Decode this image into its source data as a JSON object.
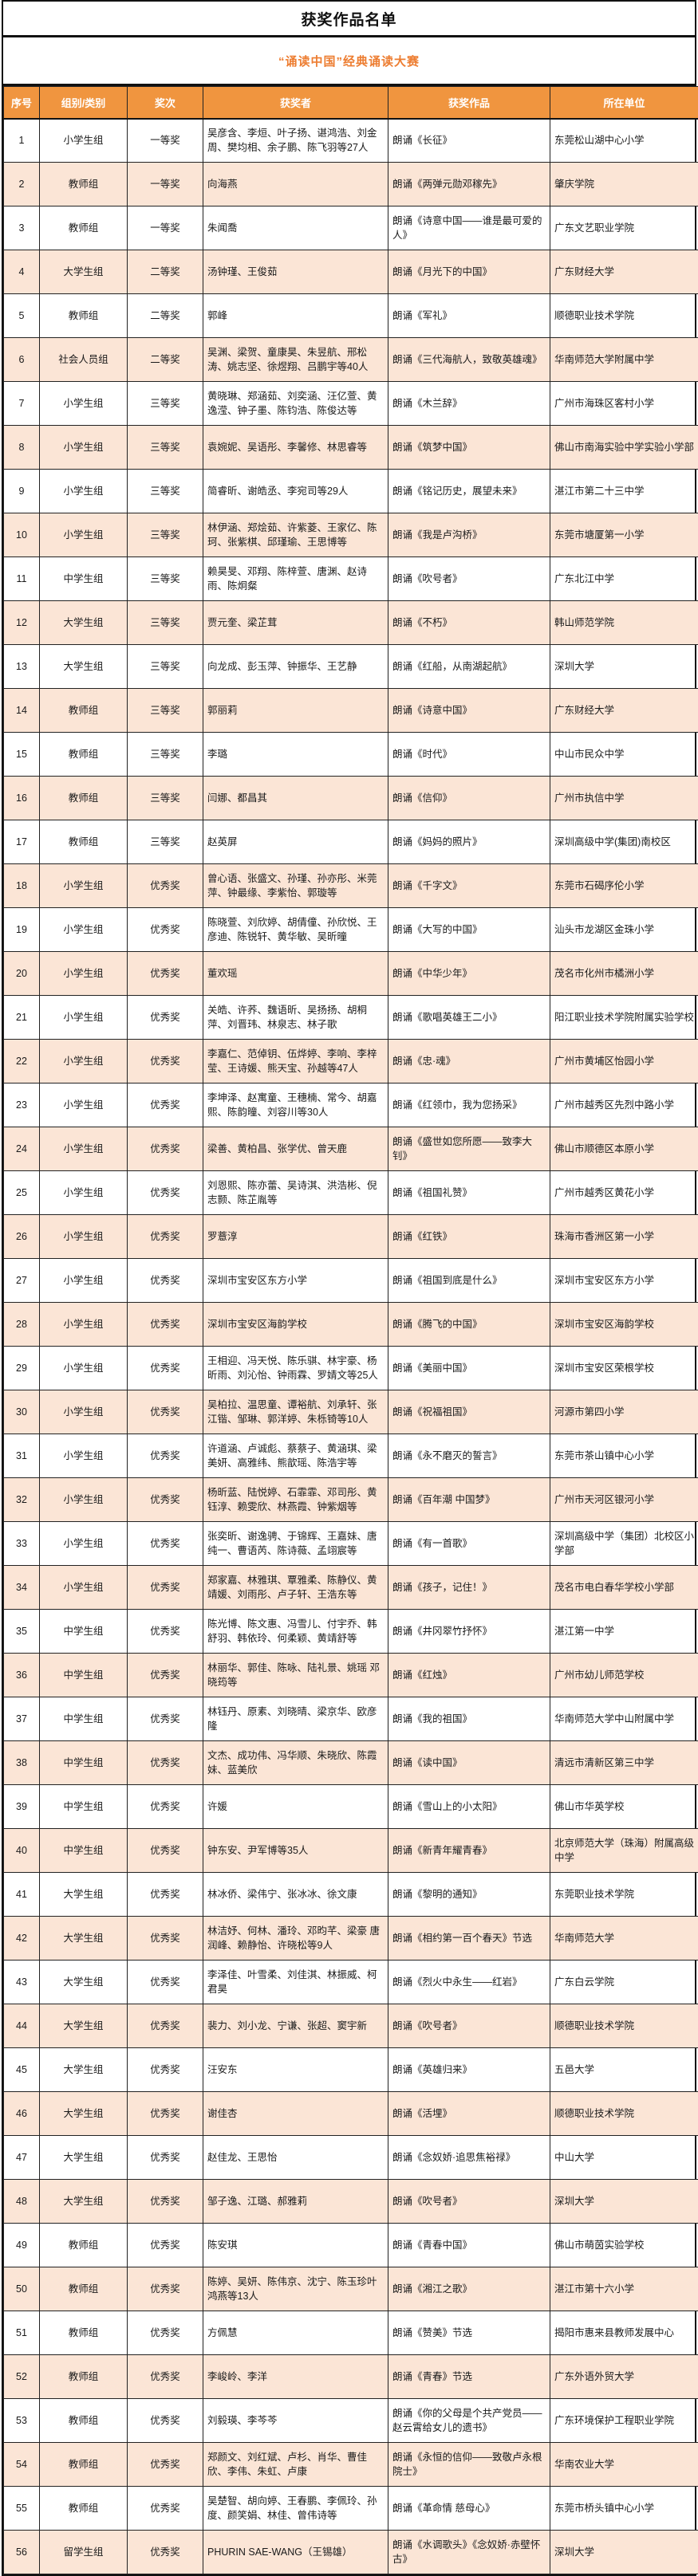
{
  "page_title": "获奖作品名单",
  "subtitle": "“诵读中国”经典诵读大赛",
  "colors": {
    "header_bg": "#F0953F",
    "header_text": "#FFFFFF",
    "alt_row_bg": "#FBE5D6",
    "subtitle_text": "#ED7D31",
    "border": "#111111"
  },
  "table": {
    "columns": [
      "序号",
      "组别/类别",
      "奖次",
      "获奖者",
      "获奖作品",
      "所在单位"
    ],
    "rows": [
      {
        "no": "1",
        "group": "小学生组",
        "award": "一等奖",
        "winners": "吴彦含、李烜、叶子扬、谌鸿浩、刘金周、樊均相、余子鹏、陈飞羽等27人",
        "work": "朗诵《长征》",
        "org": "东莞松山湖中心小学"
      },
      {
        "no": "2",
        "group": "教师组",
        "award": "一等奖",
        "winners": "向海燕",
        "work": "朗诵《两弹元勋邓稼先》",
        "org": "肇庆学院"
      },
      {
        "no": "3",
        "group": "教师组",
        "award": "一等奖",
        "winners": "朱闻喬",
        "work": "朗诵《诗意中国——谁是最可爱的人》",
        "org": "广东文艺职业学院"
      },
      {
        "no": "4",
        "group": "大学生组",
        "award": "二等奖",
        "winners": "汤钟瑾、王俊茹",
        "work": "朗诵《月光下的中国》",
        "org": "广东财经大学"
      },
      {
        "no": "5",
        "group": "教师组",
        "award": "二等奖",
        "winners": "郭峰",
        "work": "朗诵《军礼》",
        "org": "顺德职业技术学院"
      },
      {
        "no": "6",
        "group": "社会人员组",
        "award": "二等奖",
        "winners": "吴渊、梁贺、童康昊、朱昱航、邢松涛、姚志坚、徐煜翔、吕鹏宇等40人",
        "work": "朗诵《三代海航人，致敬英雄魂》",
        "org": "华南师范大学附属中学"
      },
      {
        "no": "7",
        "group": "小学生组",
        "award": "三等奖",
        "winners": "黄晓琳、郑涵茹、刘奕涵、汪亿萱、黄逸滢、钟子墨、陈钧浩、陈俊达等",
        "work": "朗诵《木兰辞》",
        "org": "广州市海珠区客村小学"
      },
      {
        "no": "8",
        "group": "小学生组",
        "award": "三等奖",
        "winners": "袁婉妮、吴语彤、李馨修、林思睿等",
        "work": "朗诵《筑梦中国》",
        "org": "佛山市南海实验中学实验小学部"
      },
      {
        "no": "9",
        "group": "小学生组",
        "award": "三等奖",
        "winners": "简睿昕、谢皓丞、李宛司等29人",
        "work": "朗诵《铭记历史，展望未来》",
        "org": "湛江市第二十三中学"
      },
      {
        "no": "10",
        "group": "小学生组",
        "award": "三等奖",
        "winners": "林伊涵、郑烩茹、许紫菱、王家亿、陈珂、张紫棋、邱瑾瑜、王思博等",
        "work": "朗诵《我是卢沟桥》",
        "org": "东莞市塘厦第一小学"
      },
      {
        "no": "11",
        "group": "中学生组",
        "award": "三等奖",
        "winners": "赖昊旻、邓翔、陈梓萱、唐渊、赵诗雨、陈炯粲",
        "work": "朗诵《吹号者》",
        "org": "广东北江中学"
      },
      {
        "no": "12",
        "group": "大学生组",
        "award": "三等奖",
        "winners": "贾元奎、梁芷茸",
        "work": "朗诵《不朽》",
        "org": "韩山师范学院"
      },
      {
        "no": "13",
        "group": "大学生组",
        "award": "三等奖",
        "winners": "向龙成、彭玉萍、钟振华、王艺静",
        "work": "朗诵《红船，从南湖起航》",
        "org": "深圳大学"
      },
      {
        "no": "14",
        "group": "教师组",
        "award": "三等奖",
        "winners": "郭丽莉",
        "work": "朗诵《诗意中国》",
        "org": "广东财经大学"
      },
      {
        "no": "15",
        "group": "教师组",
        "award": "三等奖",
        "winners": "李璐",
        "work": "朗诵《时代》",
        "org": "中山市民众中学"
      },
      {
        "no": "16",
        "group": "教师组",
        "award": "三等奖",
        "winners": "闫娜、都昌其",
        "work": "朗诵《信仰》",
        "org": "广州市执信中学"
      },
      {
        "no": "17",
        "group": "教师组",
        "award": "三等奖",
        "winners": "赵英屏",
        "work": "朗诵《妈妈的照片》",
        "org": "深圳高级中学(集团)南校区"
      },
      {
        "no": "18",
        "group": "小学生组",
        "award": "优秀奖",
        "winners": "曾心语、张盛文、孙瑾、孙亦彤、米莞萍、钟最缘、李紫怡、郭璇等",
        "work": "朗诵《千字文》",
        "org": "东莞市石碣序伦小学"
      },
      {
        "no": "19",
        "group": "小学生组",
        "award": "优秀奖",
        "winners": "陈晓萱、刘欣婷、胡倩僮、孙欣悦、王彦迪、陈锐轩、黄华敏、吴昕曈",
        "work": "朗诵《大写的中国》",
        "org": "汕头市龙湖区金珠小学"
      },
      {
        "no": "20",
        "group": "小学生组",
        "award": "优秀奖",
        "winners": "董欢瑶",
        "work": "朗诵《中华少年》",
        "org": "茂名市化州市橘洲小学"
      },
      {
        "no": "21",
        "group": "小学生组",
        "award": "优秀奖",
        "winners": "关皓、许荞、魏语昕、吴扬扬、胡桐萍、刘晋玮、林泉志、林子歌",
        "work": "朗诵《歌唱英雄王二小》",
        "org": "阳江职业技术学院附属实验学校"
      },
      {
        "no": "22",
        "group": "小学生组",
        "award": "优秀奖",
        "winners": "李嘉仁、范倬钥、伍烨婷、李响、李梓莹、王诗媛、熊天宝、孙越等47人",
        "work": "朗诵《忠·魂》",
        "org": "广州市黄埔区怡园小学"
      },
      {
        "no": "23",
        "group": "小学生组",
        "award": "优秀奖",
        "winners": "李坤泽、赵寓童、王穗楠、常今、胡嘉熙、陈韵曈、刘容川等30人",
        "work": "朗诵《红领巾，我为您扬采》",
        "org": "广州市越秀区先烈中路小学"
      },
      {
        "no": "24",
        "group": "小学生组",
        "award": "优秀奖",
        "winners": "梁善、黄柏昌、张学优、曾天鹿",
        "work": "朗诵《盛世如您所愿——致李大钊》",
        "org": "佛山市顺德区本原小学"
      },
      {
        "no": "25",
        "group": "小学生组",
        "award": "优秀奖",
        "winners": "刘恩熙、陈亦蕾、吴诗淇、洪浩彬、倪志颢、陈芷胤等",
        "work": "朗诵《祖国礼赞》",
        "org": "广州市越秀区黄花小学"
      },
      {
        "no": "26",
        "group": "小学生组",
        "award": "优秀奖",
        "winners": "罗薏淳",
        "work": "朗诵《红铁》",
        "org": "珠海市香洲区第一小学"
      },
      {
        "no": "27",
        "group": "小学生组",
        "award": "优秀奖",
        "winners": "深圳市宝安区东方小学",
        "work": "朗诵《祖国到底是什么》",
        "org": "深圳市宝安区东方小学"
      },
      {
        "no": "28",
        "group": "小学生组",
        "award": "优秀奖",
        "winners": "深圳市宝安区海韵学校",
        "work": "朗诵《腾飞的中国》",
        "org": "深圳市宝安区海韵学校"
      },
      {
        "no": "29",
        "group": "小学生组",
        "award": "优秀奖",
        "winners": "王相迎、冯天悦、陈乐骐、林宇豪、杨昕雨、刘沁怡、钟雨霖、罗婧文等25人",
        "work": "朗诵《美丽中国》",
        "org": "深圳市宝安区荣根学校"
      },
      {
        "no": "30",
        "group": "小学生组",
        "award": "优秀奖",
        "winners": "吴柏拉、温思童、谭裕航、刘承轩、张江锴、邹琳、郭洋婷、朱栎锜等10人",
        "work": "朗诵《祝福祖国》",
        "org": "河源市第四小学"
      },
      {
        "no": "31",
        "group": "小学生组",
        "award": "优秀奖",
        "winners": "许道涵、卢诚彪、蔡蔡子、黄涵琪、梁美妍、高雅纬、熊歆瑶、陈浩宇等",
        "work": "朗诵《永不磨灭的誓言》",
        "org": "东莞市茶山镇中心小学"
      },
      {
        "no": "32",
        "group": "小学生组",
        "award": "优秀奖",
        "winners": "杨昕蓝、陆悦婷、石霏霏、邓司彤、黄钰淳、赖雯欣、林燕霞、钟紫烟等",
        "work": "朗诵《百年潮 中国梦》",
        "org": "广州市天河区银河小学"
      },
      {
        "no": "33",
        "group": "小学生组",
        "award": "优秀奖",
        "winners": "张奕昕、谢逸骋、于锦辉、王嘉妹、唐纯一、曹语芮、陈诗薇、孟翊宸等",
        "work": "朗诵《有一首歌》",
        "org": "深圳高级中学（集团）北校区小学部"
      },
      {
        "no": "34",
        "group": "小学生组",
        "award": "优秀奖",
        "winners": "郑家嘉、林雅琪、覃雅柔、陈静仪、黄靖媛、刘雨彤、卢子轩、王浩东等",
        "work": "朗诵《孩子，记住！》",
        "org": "茂名市电白春华学校小学部"
      },
      {
        "no": "35",
        "group": "中学生组",
        "award": "优秀奖",
        "winners": "陈光博、陈文惠、冯雪儿、付宇乔、韩舒羽、韩依玲、何柔颖、黄靖舒等",
        "work": "朗诵《井冈翠竹抒怀》",
        "org": "湛江第一中学"
      },
      {
        "no": "36",
        "group": "中学生组",
        "award": "优秀奖",
        "winners": "林丽华、郭佳、陈咏、陆礼景、姚瑶 邓晓筠等",
        "work": "朗诵《红烛》",
        "org": "广州市幼儿师范学校"
      },
      {
        "no": "37",
        "group": "中学生组",
        "award": "优秀奖",
        "winners": "林钰丹、原素、刘晓晴、梁京华、欧彦隆",
        "work": "朗诵《我的祖国》",
        "org": "华南师范大学中山附属中学"
      },
      {
        "no": "38",
        "group": "中学生组",
        "award": "优秀奖",
        "winners": "文杰、成功伟、冯华顺、朱晓欣、陈霞妹、蓝美欣",
        "work": "朗诵《读中国》",
        "org": "清远市清新区第三中学"
      },
      {
        "no": "39",
        "group": "中学生组",
        "award": "优秀奖",
        "winners": "许媛",
        "work": "朗诵《雪山上的小太阳》",
        "org": "佛山市华英学校"
      },
      {
        "no": "40",
        "group": "中学生组",
        "award": "优秀奖",
        "winners": "钟东安、尹军博等35人",
        "work": "朗诵《新青年耀青春》",
        "org": "北京师范大学（珠海）附属高级中学"
      },
      {
        "no": "41",
        "group": "大学生组",
        "award": "优秀奖",
        "winners": "林冰侨、梁伟宁、张冰冰、徐文康",
        "work": "朗诵《黎明的通知》",
        "org": "东莞职业技术学院"
      },
      {
        "no": "42",
        "group": "大学生组",
        "award": "优秀奖",
        "winners": "林洁妤、何林、潘玲、邓昀芊、梁豪 唐润峰、赖静怡、许晓松等9人",
        "work": "朗诵《相约第一百个春天》节选",
        "org": "华南师范大学"
      },
      {
        "no": "43",
        "group": "大学生组",
        "award": "优秀奖",
        "winners": "李泽佳、叶雪柔、刘佳淇、林振威、柯君昊",
        "work": "朗诵《烈火中永生——红岩》",
        "org": "广东白云学院"
      },
      {
        "no": "44",
        "group": "大学生组",
        "award": "优秀奖",
        "winners": "裴力、刘小龙、宁谦、张超、窦宇新",
        "work": "朗诵《吹号者》",
        "org": "顺德职业技术学院"
      },
      {
        "no": "45",
        "group": "大学生组",
        "award": "优秀奖",
        "winners": "汪安东",
        "work": "朗诵《英雄归来》",
        "org": "五邑大学"
      },
      {
        "no": "46",
        "group": "大学生组",
        "award": "优秀奖",
        "winners": "谢佳杏",
        "work": "朗诵《活埋》",
        "org": "顺德职业技术学院"
      },
      {
        "no": "47",
        "group": "大学生组",
        "award": "优秀奖",
        "winners": "赵佳龙、王思怡",
        "work": "朗诵《念奴娇·追思焦裕禄》",
        "org": "中山大学"
      },
      {
        "no": "48",
        "group": "大学生组",
        "award": "优秀奖",
        "winners": "邹子逸、江璐、郝雅莉",
        "work": "朗诵《吹号者》",
        "org": "深圳大学"
      },
      {
        "no": "49",
        "group": "教师组",
        "award": "优秀奖",
        "winners": "陈安琪",
        "work": "朗诵《青春中国》",
        "org": "佛山市萌茵实验学校"
      },
      {
        "no": "50",
        "group": "教师组",
        "award": "优秀奖",
        "winners": "陈婷、吴妍、陈伟京、沈宁、陈玉珍叶鸿燕等13人",
        "work": "朗诵《湘江之歌》",
        "org": "湛江市第十六小学"
      },
      {
        "no": "51",
        "group": "教师组",
        "award": "优秀奖",
        "winners": "方佩慧",
        "work": "朗诵《赞美》节选",
        "org": "揭阳市惠来县教师发展中心"
      },
      {
        "no": "52",
        "group": "教师组",
        "award": "优秀奖",
        "winners": "李峻岭、李洋",
        "work": "朗诵《青春》节选",
        "org": "广东外语外贸大学"
      },
      {
        "no": "53",
        "group": "教师组",
        "award": "优秀奖",
        "winners": "刘毅瑛、李芩芩",
        "work": "朗诵《你的父母是个共产党员——赵云霄给女儿的遗书》",
        "org": "广东环境保护工程职业学院"
      },
      {
        "no": "54",
        "group": "教师组",
        "award": "优秀奖",
        "winners": "郑颜文、刘红斌、卢杉、肖华、曹佳欣、李伟、朱虹、卢康",
        "work": "朗诵《永恒的信仰——致敬卢永根院士》",
        "org": "华南农业大学"
      },
      {
        "no": "55",
        "group": "教师组",
        "award": "优秀奖",
        "winners": "吴楚智、胡向婷、王春鹏、李佩玲、孙度、颜笑娟、林佳、曾伟诗等",
        "work": "朗诵《革命情 慈母心》",
        "org": "东莞市桥头镇中心小学"
      },
      {
        "no": "56",
        "group": "留学生组",
        "award": "优秀奖",
        "winners": "PHURIN SAE-WANG（王锡雄）",
        "work": "朗诵《水调歌头》《念奴娇·赤壁怀古》",
        "org": "深圳大学"
      }
    ]
  }
}
